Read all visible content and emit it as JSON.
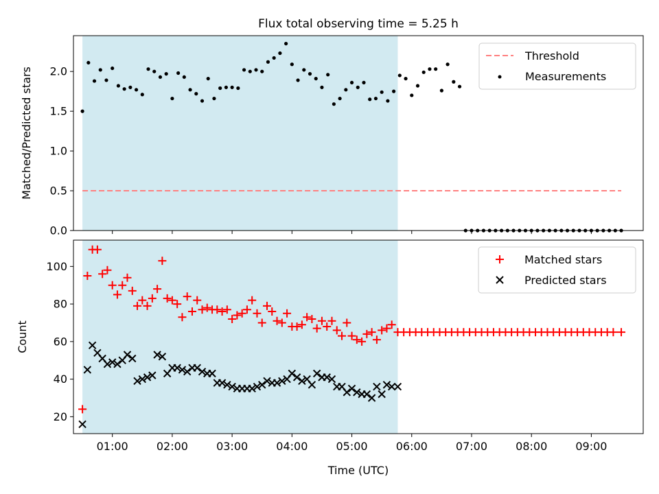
{
  "title": "Flux total observing time = 5.25 h",
  "colors": {
    "shade": "#add8e6",
    "threshold": "#ff7f7f",
    "measurement": "#000000",
    "matched": "#ff0000",
    "predicted": "#000000"
  },
  "chart_data": [
    {
      "type": "scatter",
      "ylabel": "Matched/Predicted stars",
      "xlim": [
        "00:21",
        "09:52"
      ],
      "ylim": [
        0,
        2.45
      ],
      "yticks": [
        "0.0",
        "0.5",
        "1.0",
        "1.5",
        "2.0"
      ],
      "shaded_span": [
        "00:30",
        "05:46"
      ],
      "legend_position": "top-right",
      "threshold": {
        "name": "Threshold",
        "value": 0.5,
        "x_range": [
          "00:30",
          "09:30"
        ]
      },
      "measurements": {
        "name": "Measurements",
        "x": [
          "00:30",
          "00:36",
          "00:42",
          "00:48",
          "00:54",
          "01:00",
          "01:06",
          "01:12",
          "01:18",
          "01:24",
          "01:30",
          "01:36",
          "01:42",
          "01:48",
          "01:54",
          "02:00",
          "02:06",
          "02:12",
          "02:18",
          "02:24",
          "02:30",
          "02:36",
          "02:42",
          "02:48",
          "02:54",
          "03:00",
          "03:06",
          "03:12",
          "03:18",
          "03:24",
          "03:30",
          "03:36",
          "03:42",
          "03:48",
          "03:54",
          "04:00",
          "04:06",
          "04:12",
          "04:18",
          "04:24",
          "04:30",
          "04:36",
          "04:42",
          "04:48",
          "04:54",
          "05:00",
          "05:06",
          "05:12",
          "05:18",
          "05:24",
          "05:30",
          "05:36",
          "05:42",
          "05:48",
          "05:54",
          "06:00",
          "06:06",
          "06:12",
          "06:18",
          "06:24",
          "06:30",
          "06:36",
          "06:42",
          "06:48",
          "06:54",
          "07:00",
          "07:06",
          "07:12",
          "07:18",
          "07:24",
          "07:30",
          "07:36",
          "07:42",
          "07:48",
          "07:54",
          "08:00",
          "08:06",
          "08:12",
          "08:18",
          "08:24",
          "08:30",
          "08:36",
          "08:42",
          "08:48",
          "08:54",
          "09:00",
          "09:06",
          "09:12",
          "09:18",
          "09:24",
          "09:30"
        ],
        "y": [
          1.5,
          2.11,
          1.88,
          2.02,
          1.89,
          2.04,
          1.82,
          1.78,
          1.8,
          1.77,
          1.71,
          2.03,
          2.0,
          1.93,
          1.97,
          1.66,
          1.98,
          1.93,
          1.77,
          1.72,
          1.63,
          1.91,
          1.66,
          1.79,
          1.8,
          1.8,
          1.79,
          2.02,
          2.0,
          2.02,
          2.0,
          2.12,
          2.17,
          2.23,
          2.35,
          2.09,
          1.89,
          2.02,
          1.97,
          1.91,
          1.8,
          1.96,
          1.59,
          1.66,
          1.77,
          1.86,
          1.8,
          1.86,
          1.65,
          1.66,
          1.74,
          1.63,
          1.75,
          1.95,
          1.91,
          1.7,
          1.82,
          1.99,
          2.03,
          2.03,
          1.76,
          2.09,
          1.87,
          1.81,
          0,
          0,
          0,
          0,
          0,
          0,
          0,
          0,
          0,
          0,
          0,
          0,
          0,
          0,
          0,
          0,
          0,
          0,
          0,
          0,
          0,
          0,
          0,
          0,
          0,
          0,
          0
        ]
      }
    },
    {
      "type": "scatter",
      "xlabel": "Time (UTC)",
      "ylabel": "Count",
      "xlim": [
        "00:21",
        "09:52"
      ],
      "ylim": [
        11,
        114
      ],
      "xticks": [
        "01:00",
        "02:00",
        "03:00",
        "04:00",
        "05:00",
        "06:00",
        "07:00",
        "08:00",
        "09:00"
      ],
      "yticks": [
        "20",
        "40",
        "60",
        "80",
        "100"
      ],
      "shaded_span": [
        "00:30",
        "05:46"
      ],
      "legend_position": "top-right",
      "series": [
        {
          "name": "Matched stars",
          "x": [
            "00:30",
            "00:35",
            "00:40",
            "00:45",
            "00:50",
            "00:55",
            "01:00",
            "01:05",
            "01:10",
            "01:15",
            "01:20",
            "01:25",
            "01:30",
            "01:35",
            "01:40",
            "01:45",
            "01:50",
            "01:55",
            "02:00",
            "02:05",
            "02:10",
            "02:15",
            "02:20",
            "02:25",
            "02:30",
            "02:35",
            "02:40",
            "02:45",
            "02:50",
            "02:55",
            "03:00",
            "03:05",
            "03:10",
            "03:15",
            "03:20",
            "03:25",
            "03:30",
            "03:35",
            "03:40",
            "03:45",
            "03:50",
            "03:55",
            "04:00",
            "04:05",
            "04:10",
            "04:15",
            "04:20",
            "04:25",
            "04:30",
            "04:35",
            "04:40",
            "04:45",
            "04:50",
            "04:55",
            "05:00",
            "05:05",
            "05:10",
            "05:15",
            "05:20",
            "05:25",
            "05:30",
            "05:35",
            "05:40",
            "05:46",
            "05:52",
            "05:58",
            "06:04",
            "06:10",
            "06:16",
            "06:22",
            "06:28",
            "06:34",
            "06:40",
            "06:46",
            "06:52",
            "06:58",
            "07:04",
            "07:10",
            "07:16",
            "07:22",
            "07:28",
            "07:34",
            "07:40",
            "07:46",
            "07:52",
            "07:58",
            "08:04",
            "08:10",
            "08:16",
            "08:22",
            "08:28",
            "08:34",
            "08:40",
            "08:46",
            "08:52",
            "08:58",
            "09:04",
            "09:10",
            "09:16",
            "09:22",
            "09:30"
          ],
          "y": [
            24,
            95,
            109,
            109,
            96,
            98,
            90,
            85,
            90,
            94,
            87,
            79,
            82,
            79,
            83,
            88,
            103,
            83,
            82,
            80,
            73,
            84,
            76,
            82,
            77,
            78,
            77,
            77,
            76,
            77,
            72,
            74,
            75,
            77,
            82,
            75,
            70,
            79,
            76,
            71,
            70,
            75,
            68,
            68,
            69,
            73,
            72,
            67,
            71,
            68,
            71,
            66,
            63,
            70,
            63,
            61,
            60,
            64,
            65,
            61,
            66,
            67,
            69,
            65,
            65,
            65,
            65,
            65,
            65,
            65,
            65,
            65,
            65,
            65,
            65,
            65,
            65,
            65,
            65,
            65,
            65,
            65,
            65,
            65,
            65,
            65,
            65,
            65,
            65,
            65,
            65,
            65,
            65,
            65,
            65,
            65,
            65,
            65,
            65,
            65,
            65
          ]
        },
        {
          "name": "Predicted stars",
          "x": [
            "00:30",
            "00:35",
            "00:40",
            "00:45",
            "00:50",
            "00:55",
            "01:00",
            "01:05",
            "01:10",
            "01:15",
            "01:20",
            "01:25",
            "01:30",
            "01:35",
            "01:40",
            "01:45",
            "01:50",
            "01:55",
            "02:00",
            "02:05",
            "02:10",
            "02:15",
            "02:20",
            "02:25",
            "02:30",
            "02:35",
            "02:40",
            "02:45",
            "02:50",
            "02:55",
            "03:00",
            "03:05",
            "03:10",
            "03:15",
            "03:20",
            "03:25",
            "03:30",
            "03:35",
            "03:40",
            "03:45",
            "03:50",
            "03:55",
            "04:00",
            "04:05",
            "04:10",
            "04:15",
            "04:20",
            "04:25",
            "04:30",
            "04:35",
            "04:40",
            "04:45",
            "04:50",
            "04:55",
            "05:00",
            "05:05",
            "05:10",
            "05:15",
            "05:20",
            "05:25",
            "05:30",
            "05:35",
            "05:40",
            "05:46"
          ],
          "y": [
            16,
            45,
            58,
            54,
            51,
            48,
            49,
            48,
            50,
            53,
            51,
            39,
            40,
            41,
            42,
            53,
            52,
            43,
            46,
            46,
            45,
            44,
            46,
            46,
            44,
            43,
            43,
            38,
            38,
            37,
            36,
            35,
            35,
            35,
            35,
            36,
            37,
            39,
            38,
            38,
            39,
            40,
            43,
            41,
            39,
            40,
            37,
            43,
            41,
            41,
            40,
            36,
            36,
            33,
            35,
            33,
            32,
            32,
            30,
            36,
            32,
            37,
            36,
            36
          ]
        }
      ]
    }
  ]
}
